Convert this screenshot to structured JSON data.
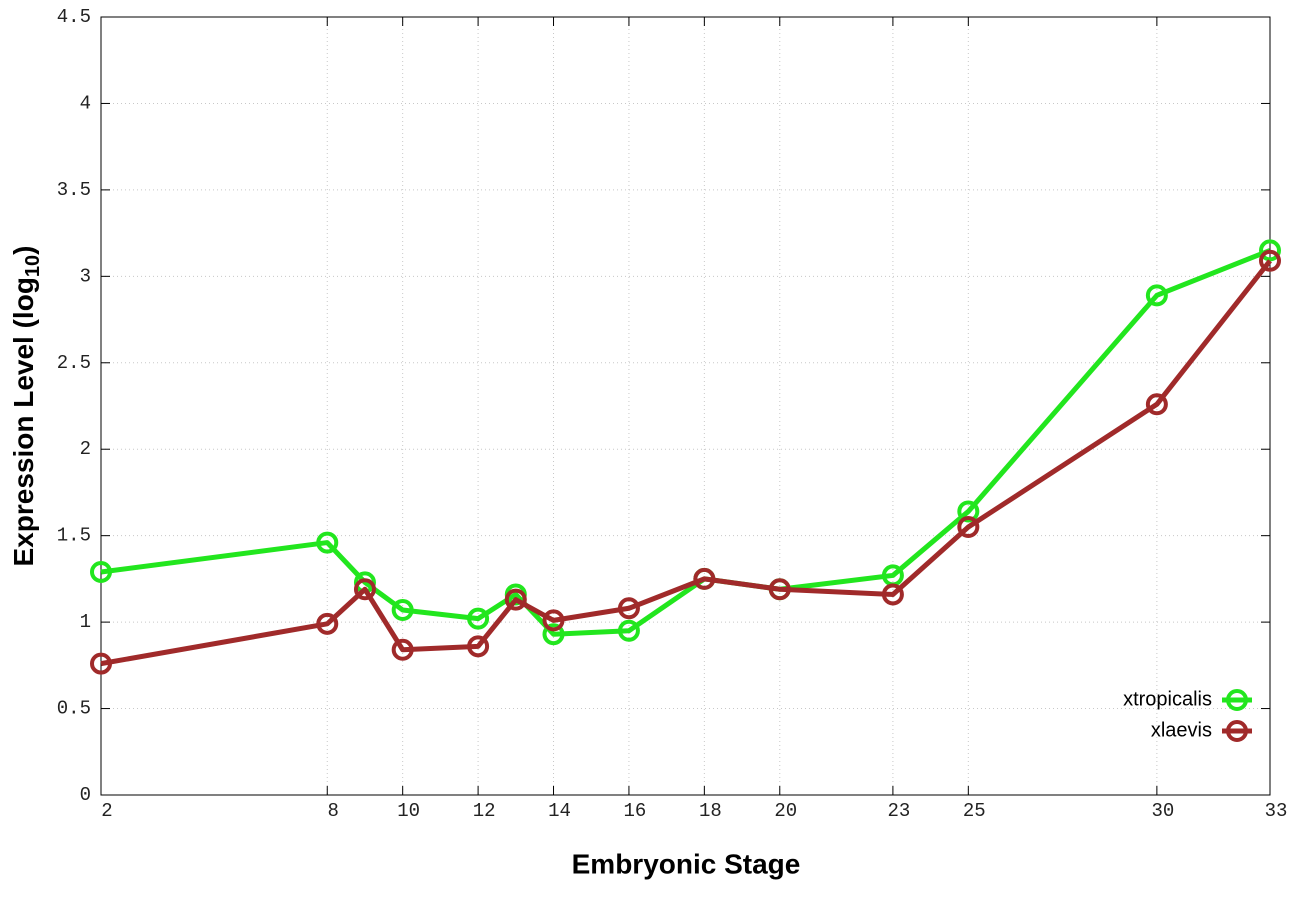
{
  "chart_data": {
    "type": "line",
    "xlabel": "Embryonic Stage",
    "ylabel": "Expression Level (log",
    "ylabel_sub": "10",
    "ylabel_end": ")",
    "x": [
      2,
      8,
      9,
      10,
      12,
      13,
      14,
      16,
      18,
      20,
      23,
      25,
      30,
      33
    ],
    "series": [
      {
        "name": "xtropicalis",
        "color": "#22e61e",
        "values": [
          1.29,
          1.46,
          1.23,
          1.07,
          1.02,
          1.16,
          0.93,
          0.95,
          1.25,
          1.19,
          1.27,
          1.64,
          2.89,
          3.15
        ]
      },
      {
        "name": "xlaevis",
        "color": "#a02a2a",
        "values": [
          0.76,
          0.99,
          1.19,
          0.84,
          0.86,
          1.13,
          1.01,
          1.08,
          1.25,
          1.19,
          1.16,
          1.55,
          2.26,
          3.09
        ]
      }
    ],
    "xlim": [
      2,
      33
    ],
    "xticks": [
      2,
      8,
      10,
      12,
      14,
      16,
      18,
      20,
      23,
      25,
      30,
      33
    ],
    "ylim": [
      0,
      4.5
    ],
    "yticks": [
      0,
      0.5,
      1,
      1.5,
      2,
      2.5,
      3,
      3.5,
      4,
      4.5
    ],
    "grid": true,
    "legend": "lower right"
  }
}
